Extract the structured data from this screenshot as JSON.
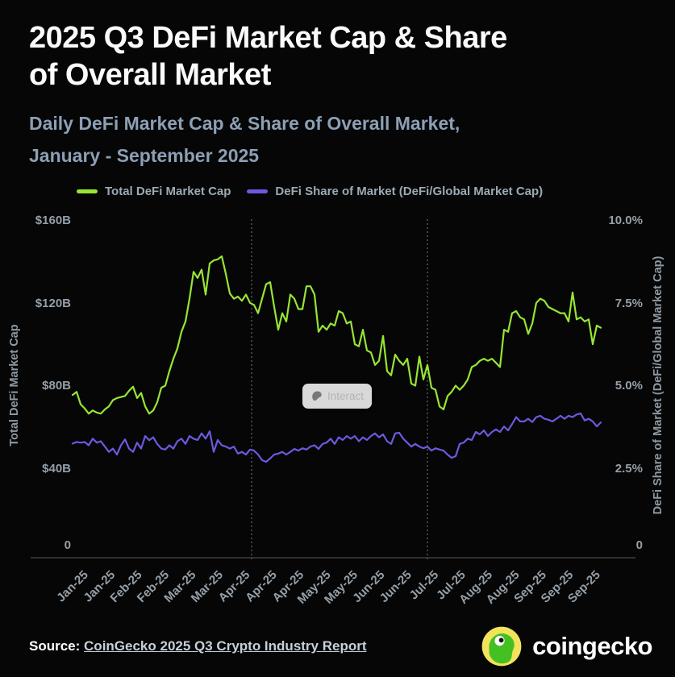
{
  "header": {
    "title_line1": "2025 Q3 DeFi Market Cap & Share",
    "title_line2": "of Overall Market",
    "subtitle_line1": "Daily DeFi Market Cap & Share of Overall Market,",
    "subtitle_line2": "January - September 2025"
  },
  "legend": [
    {
      "label": "Total DeFi Market Cap",
      "color": "#97e534"
    },
    {
      "label": "DeFi Share of Market (DeFi/Global Market Cap)",
      "color": "#6a5ae0"
    }
  ],
  "overlay": {
    "interact_label": "Interact"
  },
  "footer": {
    "source_label": "Source:",
    "source_link": "CoinGecko 2025 Q3 Crypto Industry Report",
    "brand": "coingecko"
  },
  "chart_data": {
    "type": "line",
    "title": "2025 Q3 DeFi Market Cap & Share of Overall Market",
    "x_range": [
      "2025-01-01",
      "2025-09-30"
    ],
    "x_tick_labels": [
      "Jan-25",
      "Jan-25",
      "Feb-25",
      "Feb-25",
      "Mar-25",
      "Mar-25",
      "Apr-25",
      "Apr-25",
      "Apr-25",
      "May-25",
      "May-25",
      "Jun-25",
      "Jun-25",
      "Jul-25",
      "Jul-25",
      "Aug-25",
      "Aug-25",
      "Sep-25",
      "Sep-25",
      "Sep-25"
    ],
    "quarter_dividers": [
      "2025-04-01",
      "2025-07-01"
    ],
    "grid": "quarter-dividers-only",
    "legend_position": "top",
    "y_left": {
      "label": "Total DeFi Market Cap",
      "ticks": [
        "$160B",
        "$120B",
        "$80B",
        "$40B",
        "0"
      ],
      "range": [
        0,
        160
      ],
      "unit": "USD billions"
    },
    "y_right": {
      "label": "DeFi Share of Market (DeFi/Global Market Cap)",
      "ticks": [
        "10.0%",
        "7.5%",
        "5.0%",
        "2.5%",
        "0"
      ],
      "range": [
        0,
        10
      ],
      "unit": "percent"
    },
    "series": [
      {
        "name": "Total DeFi Market Cap",
        "axis": "left",
        "unit": "USD billions",
        "color": "#97e534",
        "values": [
          75.5,
          77,
          71,
          69,
          66.5,
          68,
          67,
          66.5,
          68.5,
          70,
          73,
          74,
          74.5,
          75,
          77.5,
          79.5,
          74,
          76.5,
          70,
          66.5,
          68,
          72,
          79,
          80,
          87,
          93,
          98,
          106,
          111,
          122,
          135,
          132,
          136,
          124,
          139,
          140.5,
          141,
          142.5,
          134,
          124.5,
          122,
          123,
          121,
          124,
          120,
          119,
          115,
          122,
          129,
          130,
          118,
          107,
          115,
          111,
          124,
          122,
          117,
          117,
          128,
          128,
          124,
          106,
          109,
          107,
          110,
          109,
          116,
          115,
          110,
          111,
          100,
          99,
          107,
          97,
          96,
          90,
          92,
          104,
          87,
          85,
          95,
          92,
          90,
          93,
          81,
          80,
          94,
          83,
          90,
          79,
          78,
          70,
          68.5,
          75,
          77,
          80,
          78,
          80,
          83,
          89,
          90,
          92,
          93,
          92,
          93,
          91,
          89,
          107,
          106,
          115,
          116,
          113,
          112,
          105,
          110,
          120,
          122,
          121,
          118,
          117,
          116,
          115,
          115,
          111,
          125,
          112,
          113,
          111,
          112,
          100,
          109,
          108
        ]
      },
      {
        "name": "DeFi Share of Market (DeFi/Global Market Cap)",
        "axis": "right",
        "unit": "percent",
        "color": "#6a5ae0",
        "values": [
          3.25,
          3.3,
          3.28,
          3.3,
          3.2,
          3.4,
          3.28,
          3.32,
          3.16,
          3.0,
          3.1,
          2.92,
          3.2,
          3.38,
          3.1,
          3.0,
          3.28,
          3.1,
          3.48,
          3.35,
          3.44,
          3.24,
          3.1,
          3.07,
          3.2,
          3.1,
          3.32,
          3.4,
          3.24,
          3.48,
          3.4,
          3.36,
          3.56,
          3.4,
          3.62,
          3.0,
          3.36,
          3.2,
          3.16,
          3.1,
          3.16,
          2.95,
          3.0,
          2.92,
          3.07,
          3.04,
          2.92,
          2.75,
          2.7,
          2.8,
          2.92,
          2.95,
          3.0,
          2.92,
          3.0,
          3.09,
          3.04,
          3.11,
          3.07,
          3.16,
          3.2,
          3.09,
          3.24,
          3.28,
          3.4,
          3.24,
          3.44,
          3.36,
          3.48,
          3.4,
          3.48,
          3.32,
          3.44,
          3.36,
          3.48,
          3.56,
          3.44,
          3.53,
          3.32,
          3.24,
          3.56,
          3.58,
          3.4,
          3.28,
          3.16,
          3.24,
          3.16,
          3.11,
          3.16,
          3.04,
          3.11,
          3.07,
          3.04,
          2.92,
          2.82,
          2.87,
          3.24,
          3.28,
          3.4,
          3.36,
          3.6,
          3.53,
          3.65,
          3.48,
          3.6,
          3.68,
          3.6,
          3.77,
          3.65,
          3.84,
          4.05,
          3.92,
          3.92,
          4.0,
          3.9,
          4.05,
          4.09,
          4.0,
          3.97,
          3.92,
          4.0,
          4.09,
          4.0,
          4.09,
          4.05,
          4.13,
          4.16,
          3.95,
          4.0,
          3.92,
          3.77,
          3.89
        ]
      }
    ]
  }
}
